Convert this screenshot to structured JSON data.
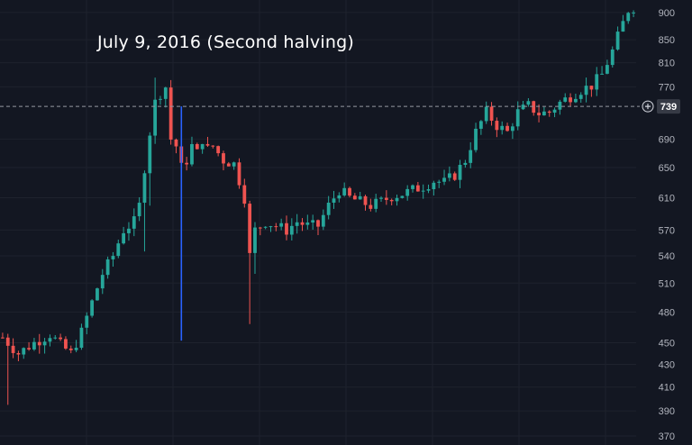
{
  "colors": {
    "background": "#131722",
    "grid": "#1e222d",
    "up": "#26a69a",
    "down": "#ef5350",
    "halving_line": "#2962ff",
    "axis_text": "#b2b5be",
    "crosshair": "#9598a1"
  },
  "annotation": "July 9, 2016 (Second halving)",
  "crosshair": {
    "price": 739,
    "label": "739",
    "icon": "plus-circle-icon"
  },
  "chart_data": {
    "type": "candlestick",
    "title": "",
    "xlabel": "",
    "ylabel": "",
    "ylim": [
      370,
      910
    ],
    "y_scale": "log",
    "grid": true,
    "y_ticks": [
      900,
      850,
      810,
      770,
      690,
      650,
      610,
      570,
      540,
      510,
      480,
      450,
      430,
      410,
      390,
      370
    ],
    "halving_marker": {
      "bar_index": 34,
      "price_low": 452,
      "price_high": 739
    },
    "path": [
      [
        0,
        455
      ],
      [
        3,
        440
      ],
      [
        6,
        450
      ],
      [
        9,
        458
      ],
      [
        11,
        448
      ],
      [
        13,
        440
      ],
      [
        15,
        460
      ],
      [
        17,
        490
      ],
      [
        19,
        520
      ],
      [
        21,
        540
      ],
      [
        23,
        570
      ],
      [
        25,
        580
      ],
      [
        26,
        600
      ],
      [
        27,
        650
      ],
      [
        28,
        700
      ],
      [
        29,
        745
      ],
      [
        30,
        760
      ],
      [
        31,
        770
      ],
      [
        32,
        690
      ],
      [
        33,
        680
      ],
      [
        34,
        650
      ],
      [
        35,
        660
      ],
      [
        36,
        680
      ],
      [
        37,
        670
      ],
      [
        38,
        690
      ],
      [
        39,
        675
      ],
      [
        40,
        680
      ],
      [
        42,
        660
      ],
      [
        44,
        655
      ],
      [
        46,
        610
      ],
      [
        47,
        540
      ],
      [
        48,
        570
      ],
      [
        50,
        580
      ],
      [
        52,
        575
      ],
      [
        54,
        570
      ],
      [
        56,
        580
      ],
      [
        58,
        575
      ],
      [
        60,
        575
      ],
      [
        62,
        600
      ],
      [
        64,
        620
      ],
      [
        66,
        610
      ],
      [
        68,
        605
      ],
      [
        70,
        600
      ],
      [
        72,
        605
      ],
      [
        74,
        612
      ],
      [
        76,
        615
      ],
      [
        78,
        620
      ],
      [
        80,
        625
      ],
      [
        82,
        632
      ],
      [
        84,
        630
      ],
      [
        86,
        640
      ],
      [
        88,
        660
      ],
      [
        90,
        700
      ],
      [
        92,
        730
      ],
      [
        94,
        710
      ],
      [
        96,
        700
      ],
      [
        98,
        730
      ],
      [
        100,
        740
      ],
      [
        102,
        728
      ],
      [
        104,
        730
      ],
      [
        106,
        745
      ],
      [
        108,
        755
      ],
      [
        110,
        765
      ],
      [
        112,
        772
      ],
      [
        114,
        790
      ],
      [
        116,
        830
      ],
      [
        118,
        880
      ],
      [
        119,
        905
      ],
      [
        120,
        910
      ]
    ]
  }
}
